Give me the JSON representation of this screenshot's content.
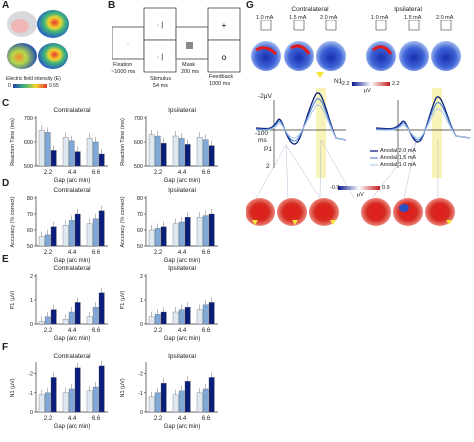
{
  "panels": {
    "A": {
      "label": "A",
      "colorbar_label": "Electric field intensity (E)",
      "colorbar_min": "0",
      "colorbar_max": "0.55"
    },
    "B": {
      "label": "B",
      "steps": [
        {
          "name": "Fixation",
          "duration": "~1000 ms"
        },
        {
          "name": "Stimulus",
          "duration": "54 ms"
        },
        {
          "name": "Mask",
          "duration": "200 ms"
        },
        {
          "name": "Feedback",
          "duration": "1000 ms"
        }
      ]
    },
    "C": {
      "label": "C"
    },
    "D": {
      "label": "D"
    },
    "E": {
      "label": "E"
    },
    "F": {
      "label": "F"
    },
    "G": {
      "label": "G",
      "headers": [
        "Contralateral",
        "Ipsilateral"
      ],
      "currents": [
        "1.0 mA",
        "1.5 mA",
        "2.0 mA",
        "1.0 mA",
        "1.5 mA",
        "2.0 mA"
      ],
      "topo_scale_top": {
        "min": "-2.2",
        "max": "2.2",
        "unit": "μV"
      },
      "topo_scale_bottom": {
        "min": "-0.9",
        "max": "0.9",
        "unit": "μV"
      },
      "erp_ylabel": "-2μV",
      "erp_ytick_bottom": "2",
      "erp_time_label": "-100",
      "erp_time_unit": "ms",
      "n1": "N1",
      "p1": "P1",
      "legend": [
        "Anodal 2.0 mA",
        "Anodal 1.5 mA",
        "Anodal 1.0 mA"
      ]
    }
  },
  "chart_data": [
    {
      "panel": "C",
      "side": "Contralateral",
      "type": "bar",
      "title": "Contralateral",
      "ylabel": "Reaction Time (ms)",
      "xlabel": "Gap (arc min)",
      "categories": [
        "2.2",
        "4.4",
        "6.6"
      ],
      "yticks": [
        "500",
        "600",
        "700"
      ],
      "ylim": [
        500,
        700
      ],
      "series": [
        {
          "values": [
            648,
            620,
            615
          ]
        },
        {
          "values": [
            640,
            605,
            600
          ]
        },
        {
          "values": [
            565,
            560,
            550
          ]
        }
      ]
    },
    {
      "panel": "C",
      "side": "Ipsilateral",
      "type": "bar",
      "title": "Ipsilateral",
      "ylabel": "Reaction Time (ms)",
      "xlabel": "Gap (arc min)",
      "categories": [
        "2.2",
        "4.4",
        "6.6"
      ],
      "yticks": [
        "500",
        "600",
        "700"
      ],
      "ylim": [
        500,
        700
      ],
      "series": [
        {
          "values": [
            630,
            625,
            620
          ]
        },
        {
          "values": [
            625,
            615,
            610
          ]
        },
        {
          "values": [
            595,
            590,
            585
          ]
        }
      ]
    },
    {
      "panel": "D",
      "side": "Contralateral",
      "type": "bar",
      "title": "Contralateral",
      "ylabel": "Accuracy (% correct)",
      "xlabel": "Gap (arc min)",
      "categories": [
        "2.2",
        "4.4",
        "6.6"
      ],
      "yticks": [
        "50",
        "60",
        "70",
        "80"
      ],
      "ylim": [
        50,
        80
      ],
      "series": [
        {
          "values": [
            56,
            63,
            64
          ]
        },
        {
          "values": [
            57,
            66,
            67
          ]
        },
        {
          "values": [
            62,
            70,
            72
          ]
        }
      ]
    },
    {
      "panel": "D",
      "side": "Ipsilateral",
      "type": "bar",
      "title": "Ipsilateral",
      "ylabel": "Accuracy (% correct)",
      "xlabel": "Gap (arc min)",
      "categories": [
        "2.2",
        "4.4",
        "6.6"
      ],
      "yticks": [
        "50",
        "60",
        "70",
        "80"
      ],
      "ylim": [
        50,
        80
      ],
      "series": [
        {
          "values": [
            60,
            64,
            68
          ]
        },
        {
          "values": [
            61,
            65,
            69
          ]
        },
        {
          "values": [
            62,
            68,
            70
          ]
        }
      ]
    },
    {
      "panel": "E",
      "side": "Contralateral",
      "type": "bar",
      "title": "Contralateral",
      "ylabel": "P1 (μV)",
      "xlabel": "Gap (arc min)",
      "categories": [
        "2.2",
        "4.4",
        "6.6"
      ],
      "yticks": [
        "0",
        "1",
        "2"
      ],
      "ylim": [
        0,
        2
      ],
      "series": [
        {
          "values": [
            0.1,
            0.2,
            0.3
          ]
        },
        {
          "values": [
            0.3,
            0.5,
            0.7
          ]
        },
        {
          "values": [
            0.6,
            0.9,
            1.3
          ]
        }
      ]
    },
    {
      "panel": "E",
      "side": "Ipsilateral",
      "type": "bar",
      "title": "Ipsilateral",
      "ylabel": "P1 (μV)",
      "xlabel": "Gap (arc min)",
      "categories": [
        "2.2",
        "4.4",
        "6.6"
      ],
      "yticks": [
        "0",
        "1",
        "2"
      ],
      "ylim": [
        0,
        2
      ],
      "series": [
        {
          "values": [
            0.3,
            0.5,
            0.6
          ]
        },
        {
          "values": [
            0.4,
            0.6,
            0.8
          ]
        },
        {
          "values": [
            0.5,
            0.7,
            0.9
          ]
        }
      ]
    },
    {
      "panel": "F",
      "side": "Contralateral",
      "type": "bar",
      "title": "Contralateral",
      "ylabel": "N1 (μV)",
      "xlabel": "Gap (arc min)",
      "categories": [
        "2.2",
        "4.4",
        "6.6"
      ],
      "yticks": [
        "0",
        "-1",
        "-2"
      ],
      "ylim": [
        0,
        -2.5
      ],
      "series": [
        {
          "values": [
            -0.9,
            -1.0,
            -1.1
          ]
        },
        {
          "values": [
            -1.0,
            -1.2,
            -1.3
          ]
        },
        {
          "values": [
            -1.8,
            -2.3,
            -2.4
          ]
        }
      ]
    },
    {
      "panel": "F",
      "side": "Ipsilateral",
      "type": "bar",
      "title": "Ipsilateral",
      "ylabel": "N1 (μV)",
      "xlabel": "Gap (arc min)",
      "categories": [
        "2.2",
        "4.4",
        "6.6"
      ],
      "yticks": [
        "0",
        "-1",
        "-2"
      ],
      "ylim": [
        0,
        -2.5
      ],
      "series": [
        {
          "values": [
            -0.8,
            -0.9,
            -1.0
          ]
        },
        {
          "values": [
            -1.0,
            -1.1,
            -1.2
          ]
        },
        {
          "values": [
            -1.5,
            -1.6,
            -1.8
          ]
        }
      ]
    }
  ],
  "colors": {
    "bar_light": "#dde8f3",
    "bar_mid": "#7fa8d6",
    "bar_dark": "#0a1e7a",
    "error": "#8c8c8c",
    "highlight": "#f6f0a6"
  }
}
